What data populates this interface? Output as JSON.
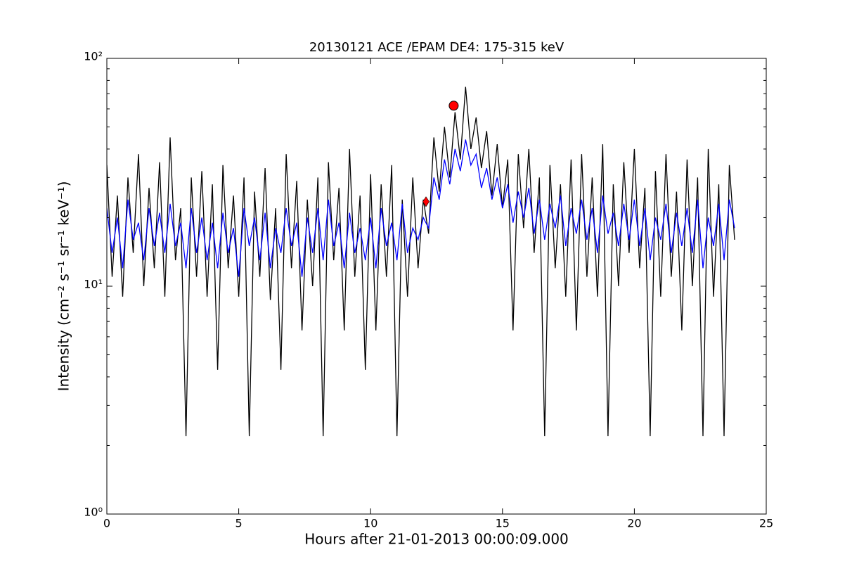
{
  "chart_data": {
    "type": "line",
    "title": "20130121 ACE /EPAM DE4: 175-315 keV",
    "x_label": "Hours after 21-01-2013 00:00:09.000",
    "y_label": "Intensity (cm⁻² s⁻¹ sr⁻¹ keV⁻¹)",
    "y_log": true,
    "xlim": [
      0,
      25
    ],
    "xticks": [
      0,
      5,
      10,
      15,
      20,
      25
    ],
    "ylim": [
      1,
      100
    ],
    "yticks": [
      {
        "value": 1,
        "label": "10⁰"
      },
      {
        "value": 10,
        "label": "10¹"
      },
      {
        "value": 100,
        "label": "10²"
      }
    ],
    "x": [
      0,
      0.2,
      0.4,
      0.6,
      0.8,
      1,
      1.2,
      1.4,
      1.6,
      1.8,
      2,
      2.2,
      2.4,
      2.6,
      2.8,
      3,
      3.2,
      3.4,
      3.6,
      3.8,
      4,
      4.2,
      4.4,
      4.6,
      4.8,
      5,
      5.2,
      5.4,
      5.6,
      5.8,
      6,
      6.2,
      6.4,
      6.6,
      6.8,
      7,
      7.2,
      7.4,
      7.6,
      7.8,
      8,
      8.2,
      8.4,
      8.6,
      8.8,
      9,
      9.2,
      9.4,
      9.6,
      9.8,
      10,
      10.2,
      10.4,
      10.6,
      10.8,
      11,
      11.2,
      11.4,
      11.6,
      11.8,
      12,
      12.2,
      12.4,
      12.6,
      12.8,
      13,
      13.2,
      13.4,
      13.6,
      13.8,
      14,
      14.2,
      14.4,
      14.6,
      14.8,
      15,
      15.2,
      15.4,
      15.6,
      15.8,
      16,
      16.2,
      16.4,
      16.6,
      16.8,
      17,
      17.2,
      17.4,
      17.6,
      17.8,
      18,
      18.2,
      18.4,
      18.6,
      18.8,
      19,
      19.2,
      19.4,
      19.6,
      19.8,
      20,
      20.2,
      20.4,
      20.6,
      20.8,
      21,
      21.2,
      21.4,
      21.6,
      21.8,
      22,
      22.2,
      22.4,
      22.6,
      22.8,
      23,
      23.2,
      23.4,
      23.6,
      23.8
    ],
    "series": [
      {
        "color": "#000000",
        "values": [
          34,
          11,
          25,
          9,
          30,
          14,
          38,
          10,
          27,
          12,
          35,
          9,
          45,
          13,
          22,
          2.2,
          30,
          11,
          32,
          9,
          28,
          4.3,
          34,
          12,
          25,
          9,
          30,
          2.2,
          26,
          11,
          33,
          8.7,
          22,
          4.3,
          38,
          12,
          29,
          6.4,
          24,
          10,
          30,
          2.2,
          35,
          13,
          27,
          6.4,
          40,
          11,
          25,
          4.3,
          31,
          6.4,
          28,
          11,
          34,
          2.2,
          24,
          9,
          30,
          12,
          24,
          17,
          45,
          26,
          50,
          30,
          58,
          36,
          75,
          40,
          55,
          33,
          48,
          25,
          42,
          22,
          36,
          6.4,
          38,
          18,
          40,
          14,
          30,
          2.2,
          34,
          12,
          28,
          9,
          36,
          6.4,
          38,
          11,
          30,
          9,
          42,
          2.2,
          28,
          10,
          35,
          14,
          40,
          12,
          27,
          2.2,
          32,
          9,
          38,
          11,
          26,
          6.4,
          36,
          10,
          30,
          2.2,
          40,
          9,
          28,
          2.2,
          34,
          16
        ]
      },
      {
        "color": "#0000ff",
        "values": [
          22,
          14,
          20,
          12,
          24,
          16,
          19,
          13,
          22,
          15,
          21,
          14,
          23,
          15,
          19,
          12,
          22,
          14,
          20,
          13,
          19,
          12,
          21,
          14,
          18,
          11,
          22,
          15,
          20,
          13,
          21,
          12,
          18,
          14,
          22,
          15,
          19,
          11,
          20,
          14,
          22,
          13,
          24,
          15,
          19,
          12,
          21,
          14,
          18,
          13,
          20,
          12,
          22,
          15,
          19,
          13,
          23,
          14,
          18,
          16,
          20,
          18,
          30,
          24,
          36,
          28,
          40,
          32,
          44,
          34,
          38,
          27,
          33,
          24,
          30,
          22,
          28,
          19,
          26,
          20,
          27,
          17,
          24,
          16,
          23,
          18,
          25,
          15,
          22,
          17,
          24,
          16,
          22,
          14,
          25,
          17,
          21,
          15,
          23,
          16,
          24,
          15,
          22,
          13,
          20,
          16,
          23,
          14,
          21,
          15,
          22,
          14,
          24,
          12,
          20,
          15,
          23,
          13,
          24,
          18
        ]
      }
    ],
    "markers": {
      "color": "#ff0000",
      "x": [
        13.15,
        12.1
      ],
      "values": [
        62,
        23.5
      ],
      "shapes": [
        "circle",
        "diamond"
      ]
    }
  }
}
